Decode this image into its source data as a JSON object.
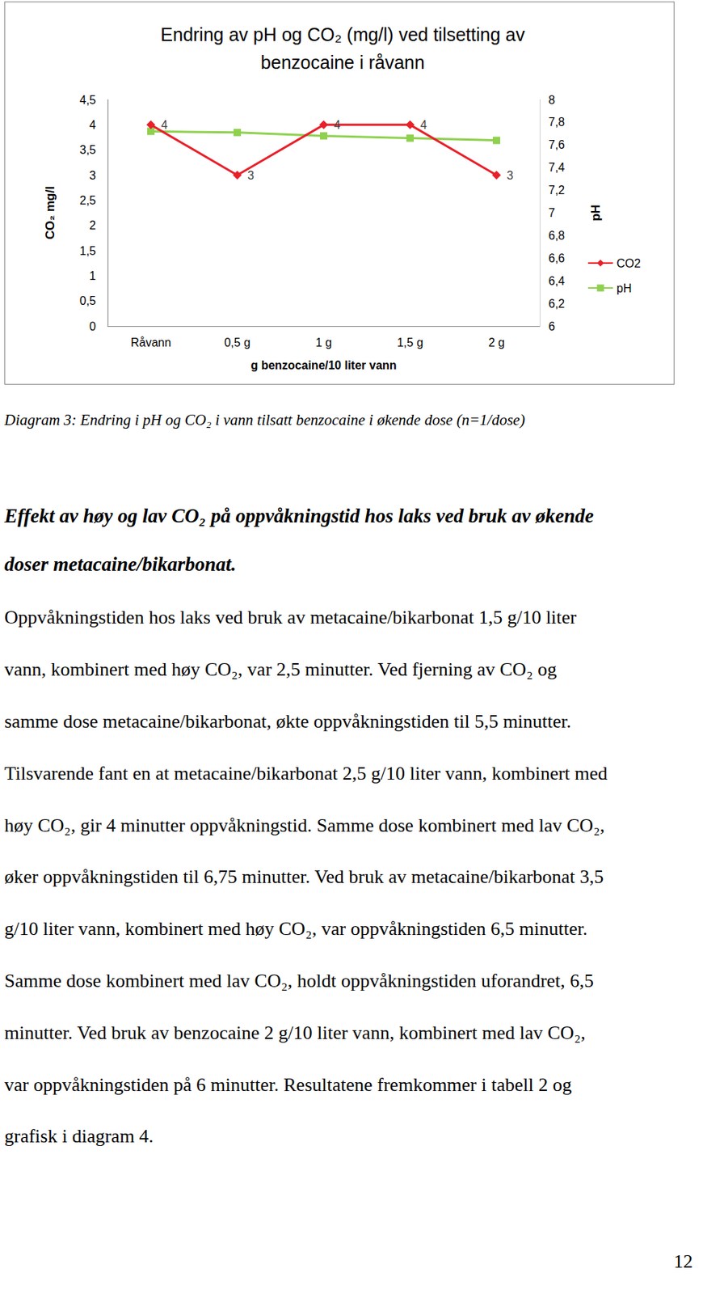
{
  "chart_data": {
    "type": "line",
    "title": [
      "Endring av pH og CO₂ (mg/l) ved tilsetting av",
      "benzocaine i råvann"
    ],
    "x_label": "g benzocaine/10 liter vann",
    "y_label": "CO₂ mg/l",
    "y2_label": "pH",
    "categories": [
      "Råvann",
      "0,5 g",
      "1 g",
      "1,5 g",
      "2 g"
    ],
    "series": [
      {
        "name": "CO2",
        "color": "#e8202a",
        "values": [
          4,
          3,
          4,
          4,
          3
        ],
        "marker": "diamond",
        "data_labels": true
      },
      {
        "name": "pH",
        "color": "#8fd14f",
        "values": [
          7.72,
          7.71,
          7.68,
          7.66,
          7.64
        ],
        "marker": "square",
        "axis": "y2"
      }
    ],
    "ylim": [
      0,
      4.5
    ],
    "yticks": [
      0,
      {
        "value": 0.5,
        "label": "0,5"
      },
      1,
      {
        "value": 1.5,
        "label": "1,5"
      },
      2,
      {
        "value": 2.5,
        "label": "2,5"
      },
      3,
      {
        "value": 3.5,
        "label": "3,5"
      },
      4,
      {
        "value": 4.5,
        "label": "4,5"
      }
    ],
    "y2lim": [
      6,
      8
    ],
    "y2ticks": [
      6,
      {
        "value": 6.2,
        "label": "6,2"
      },
      {
        "value": 6.4,
        "label": "6,4"
      },
      {
        "value": 6.6,
        "label": "6,6"
      },
      {
        "value": 6.8,
        "label": "6,8"
      },
      7,
      {
        "value": 7.2,
        "label": "7,2"
      },
      {
        "value": 7.4,
        "label": "7,4"
      },
      {
        "value": 7.6,
        "label": "7,6"
      },
      {
        "value": 7.8,
        "label": "7,8"
      },
      8
    ],
    "grid": false,
    "legend": "right"
  },
  "document": {
    "caption": "Diagram 3: Endring i pH og CO₂ i vann tilsatt benzocaine i økende dose (n=1/dose)",
    "heading_lines": [
      "Effekt av høy og lav CO₂ på oppvåkningstid hos laks ved bruk av økende",
      "doser metacaine/bikarbonat."
    ],
    "paragraph_lines": [
      "Oppvåkningstiden hos laks ved bruk av metacaine/bikarbonat 1,5 g/10 liter",
      "vann, kombinert med høy CO₂, var 2,5 minutter. Ved fjerning av CO₂ og",
      "samme dose metacaine/bikarbonat, økte oppvåkningstiden til 5,5 minutter.",
      "Tilsvarende fant en at metacaine/bikarbonat 2,5 g/10 liter vann, kombinert med",
      "høy CO₂, gir 4 minutter oppvåkningstid. Samme dose kombinert med lav CO₂,",
      "øker oppvåkningstiden til 6,75 minutter. Ved bruk av metacaine/bikarbonat 3,5",
      "g/10 liter vann, kombinert med høy CO₂, var oppvåkningstiden 6,5 minutter.",
      "Samme dose kombinert med lav CO₂, holdt oppvåkningstiden uforandret, 6,5",
      "minutter.  Ved bruk av benzocaine 2 g/10 liter vann, kombinert med lav CO₂,",
      "var oppvåkningstiden på 6 minutter. Resultatene fremkommer i tabell 2 og",
      "grafisk i diagram 4."
    ],
    "page_number": "12"
  }
}
